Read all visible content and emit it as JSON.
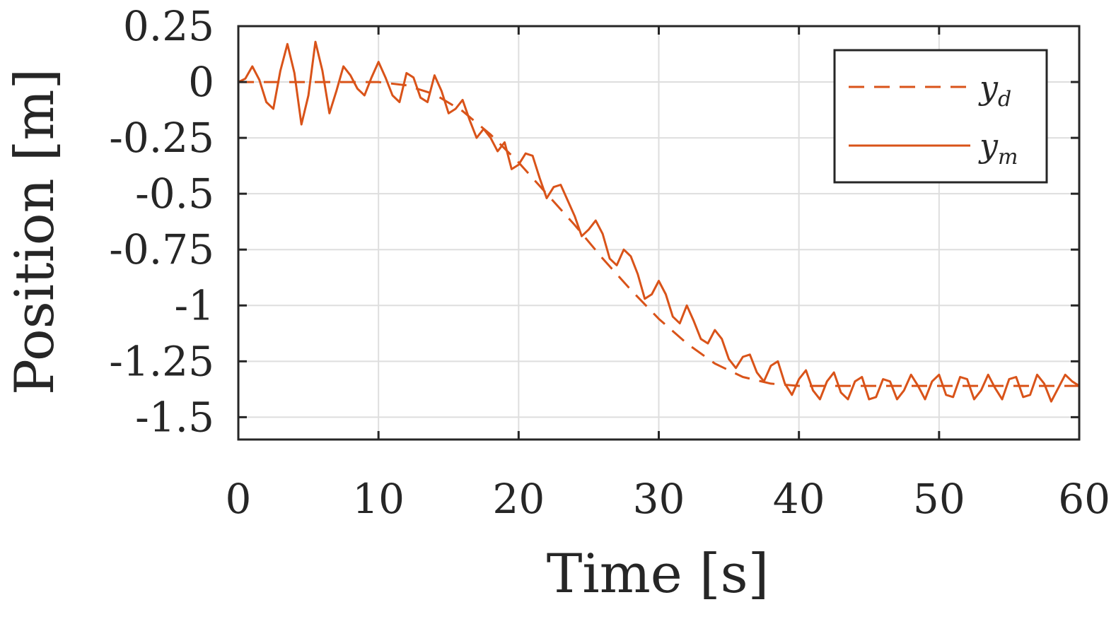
{
  "chart_data": {
    "type": "line",
    "title": "",
    "xlabel": "Time [s]",
    "ylabel": "Position [m]",
    "xlim": [
      0,
      60
    ],
    "ylim": [
      -1.6,
      0.25
    ],
    "xticks": [
      0,
      10,
      20,
      30,
      40,
      50,
      60
    ],
    "xtick_labels": [
      "0",
      "10",
      "20",
      "30",
      "40",
      "50",
      "60"
    ],
    "yticks": [
      0.25,
      0,
      -0.25,
      -0.5,
      -0.75,
      -1,
      -1.25,
      -1.5
    ],
    "ytick_labels": [
      "0.25",
      "0",
      "-0.25",
      "-0.5",
      "-0.75",
      "-1",
      "-1.25",
      "-1.5"
    ],
    "grid": true,
    "legend_position": "top-right",
    "color": "#D95319",
    "series": [
      {
        "name": "y_d",
        "legend_main": "y",
        "legend_sub": "d",
        "style": "dashed",
        "x": [
          0,
          2,
          4,
          6,
          8,
          10,
          12,
          14,
          16,
          18,
          20,
          22,
          24,
          26,
          28,
          30,
          32,
          34,
          36,
          38,
          40,
          42,
          44,
          46,
          48,
          50,
          52,
          54,
          56,
          58,
          60
        ],
        "values": [
          0,
          0,
          0,
          0,
          0,
          0,
          -0.015,
          -0.055,
          -0.13,
          -0.235,
          -0.36,
          -0.5,
          -0.64,
          -0.79,
          -0.93,
          -1.06,
          -1.17,
          -1.26,
          -1.32,
          -1.35,
          -1.36,
          -1.36,
          -1.36,
          -1.36,
          -1.36,
          -1.36,
          -1.36,
          -1.36,
          -1.36,
          -1.36,
          -1.36
        ]
      },
      {
        "name": "y_m",
        "legend_main": "y",
        "legend_sub": "m",
        "style": "solid",
        "x": [
          0,
          0.5,
          1.0,
          1.5,
          2.0,
          2.5,
          3.0,
          3.5,
          4.0,
          4.5,
          5.0,
          5.5,
          6.0,
          6.5,
          7.0,
          7.5,
          8.0,
          8.5,
          9.0,
          9.5,
          10.0,
          10.5,
          11.0,
          11.5,
          12.0,
          12.5,
          13.0,
          13.5,
          14.0,
          14.5,
          15.0,
          15.5,
          16.0,
          16.5,
          17.0,
          17.5,
          18.0,
          18.5,
          19.0,
          19.5,
          20.0,
          20.5,
          21.0,
          21.5,
          22.0,
          22.5,
          23.0,
          23.5,
          24.0,
          24.5,
          25.0,
          25.5,
          26.0,
          26.5,
          27.0,
          27.5,
          28.0,
          28.5,
          29.0,
          29.5,
          30.0,
          30.5,
          31.0,
          31.5,
          32.0,
          32.5,
          33.0,
          33.5,
          34.0,
          34.5,
          35.0,
          35.5,
          36.0,
          36.5,
          37.0,
          37.5,
          38.0,
          38.5,
          39.0,
          39.5,
          40.0,
          40.5,
          41.0,
          41.5,
          42.0,
          42.5,
          43.0,
          43.5,
          44.0,
          44.5,
          45.0,
          45.5,
          46.0,
          46.5,
          47.0,
          47.5,
          48.0,
          48.5,
          49.0,
          49.5,
          50.0,
          50.5,
          51.0,
          51.5,
          52.0,
          52.5,
          53.0,
          53.5,
          54.0,
          54.5,
          55.0,
          55.5,
          56.0,
          56.5,
          57.0,
          57.5,
          58.0,
          58.5,
          59.0,
          59.5,
          60.0
        ],
        "values": [
          0,
          0.015,
          0.07,
          0.01,
          -0.09,
          -0.12,
          0.05,
          0.17,
          0.04,
          -0.19,
          -0.06,
          0.18,
          0.05,
          -0.14,
          -0.04,
          0.07,
          0.03,
          -0.03,
          -0.06,
          0.02,
          0.09,
          0.02,
          -0.06,
          -0.09,
          0.04,
          0.02,
          -0.07,
          -0.09,
          0.03,
          -0.04,
          -0.14,
          -0.12,
          -0.08,
          -0.17,
          -0.25,
          -0.21,
          -0.25,
          -0.31,
          -0.27,
          -0.39,
          -0.37,
          -0.32,
          -0.33,
          -0.43,
          -0.52,
          -0.47,
          -0.46,
          -0.53,
          -0.6,
          -0.69,
          -0.66,
          -0.62,
          -0.68,
          -0.79,
          -0.82,
          -0.75,
          -0.78,
          -0.86,
          -0.97,
          -0.95,
          -0.89,
          -0.95,
          -1.05,
          -1.08,
          -1.0,
          -1.07,
          -1.15,
          -1.17,
          -1.11,
          -1.15,
          -1.24,
          -1.28,
          -1.23,
          -1.22,
          -1.3,
          -1.34,
          -1.27,
          -1.25,
          -1.35,
          -1.4,
          -1.33,
          -1.29,
          -1.38,
          -1.42,
          -1.34,
          -1.3,
          -1.39,
          -1.42,
          -1.34,
          -1.32,
          -1.42,
          -1.41,
          -1.33,
          -1.34,
          -1.42,
          -1.38,
          -1.31,
          -1.36,
          -1.42,
          -1.34,
          -1.31,
          -1.4,
          -1.41,
          -1.32,
          -1.33,
          -1.42,
          -1.38,
          -1.31,
          -1.37,
          -1.42,
          -1.33,
          -1.32,
          -1.41,
          -1.4,
          -1.31,
          -1.35,
          -1.43,
          -1.37,
          -1.31,
          -1.34,
          -1.36
        ]
      }
    ]
  }
}
